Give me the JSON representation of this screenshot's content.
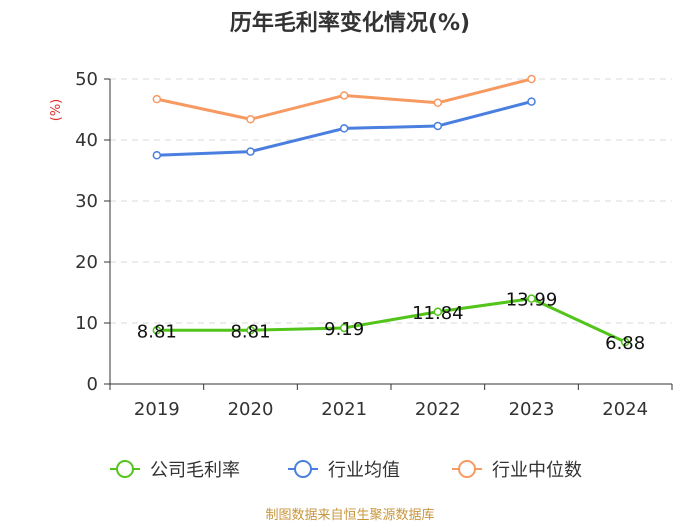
{
  "chart_data": {
    "type": "line",
    "title": "历年毛利率变化情况(%)",
    "ylabel": "(%)",
    "xlabel": "",
    "categories": [
      "2019",
      "2020",
      "2021",
      "2022",
      "2023",
      "2024"
    ],
    "ylim": [
      0,
      50
    ],
    "yticks": [
      0,
      10,
      20,
      30,
      40,
      50
    ],
    "grid": true,
    "legend_position": "bottom",
    "series": [
      {
        "name": "公司毛利率",
        "color": "#52c41a",
        "values": [
          8.81,
          8.81,
          9.19,
          11.84,
          13.99,
          6.88
        ],
        "labels": [
          "8.81",
          "8.81",
          "9.19",
          "11.84",
          "13.99",
          "6.88"
        ]
      },
      {
        "name": "行业均值",
        "color": "#4a7fe0",
        "values": [
          37.5,
          38.1,
          41.9,
          42.3,
          46.3,
          null
        ]
      },
      {
        "name": "行业中位数",
        "color": "#f79a62",
        "values": [
          46.7,
          43.4,
          47.3,
          46.1,
          50.0,
          null
        ]
      }
    ]
  },
  "source": "制图数据来自恒生聚源数据库"
}
